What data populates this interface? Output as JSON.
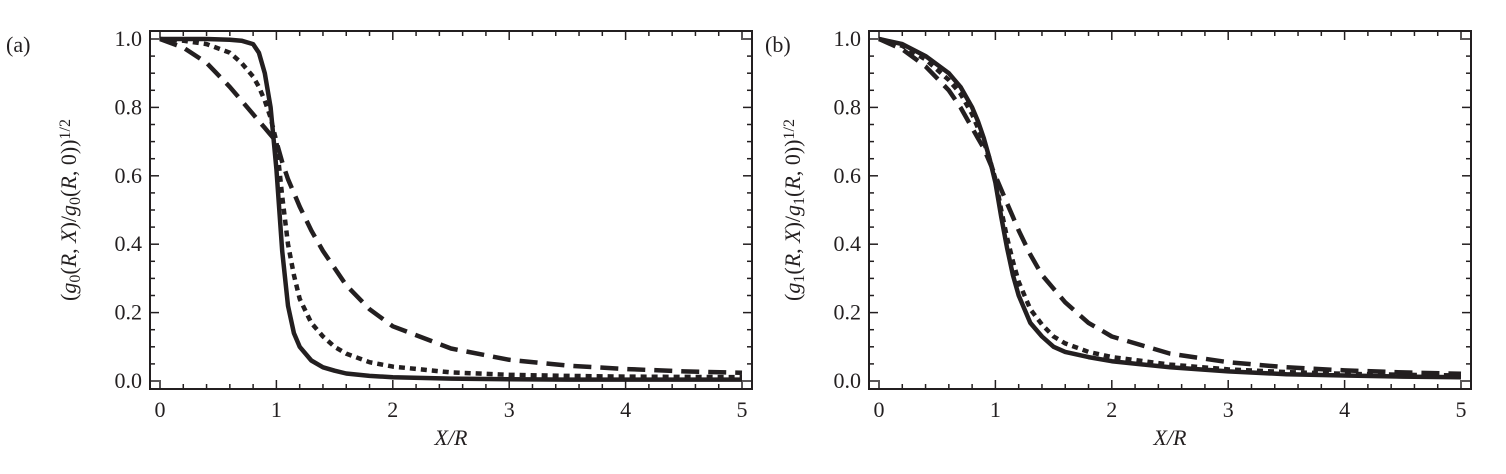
{
  "chart_data": [
    {
      "type": "line",
      "panel_label": "(a)",
      "xlabel": "X/R",
      "ylabel": "(g0(R, X)/g0(R, 0))^1/2",
      "ylabel_g": "g",
      "ylabel_sub": "0",
      "xlim": [
        0,
        5
      ],
      "ylim": [
        0,
        1
      ],
      "x_ticks": [
        "0",
        "1",
        "2",
        "3",
        "4",
        "5"
      ],
      "y_ticks": [
        "0.0",
        "0.2",
        "0.4",
        "0.6",
        "0.8",
        "1.0"
      ],
      "x": [
        0,
        0.2,
        0.4,
        0.6,
        0.7,
        0.8,
        0.85,
        0.9,
        0.95,
        1.0,
        1.05,
        1.1,
        1.15,
        1.2,
        1.3,
        1.4,
        1.5,
        1.6,
        1.8,
        2.0,
        2.5,
        3.0,
        3.5,
        4.0,
        4.5,
        5.0
      ],
      "series": [
        {
          "style": "solid",
          "values": [
            1.0,
            1.0,
            1.0,
            0.998,
            0.995,
            0.985,
            0.96,
            0.9,
            0.8,
            0.62,
            0.38,
            0.22,
            0.14,
            0.1,
            0.06,
            0.04,
            0.03,
            0.022,
            0.015,
            0.011,
            0.007,
            0.005,
            0.004,
            0.004,
            0.004,
            0.004
          ]
        },
        {
          "style": "dotted",
          "values": [
            1.0,
            0.995,
            0.985,
            0.96,
            0.93,
            0.89,
            0.86,
            0.82,
            0.77,
            0.7,
            0.54,
            0.4,
            0.31,
            0.24,
            0.17,
            0.13,
            0.1,
            0.08,
            0.055,
            0.042,
            0.025,
            0.018,
            0.015,
            0.013,
            0.012,
            0.011
          ]
        },
        {
          "style": "dashed",
          "values": [
            1.0,
            0.975,
            0.93,
            0.86,
            0.82,
            0.78,
            0.76,
            0.74,
            0.72,
            0.7,
            0.64,
            0.59,
            0.55,
            0.51,
            0.44,
            0.38,
            0.33,
            0.28,
            0.21,
            0.16,
            0.095,
            0.062,
            0.045,
            0.035,
            0.028,
            0.024
          ]
        }
      ]
    },
    {
      "type": "line",
      "panel_label": "(b)",
      "xlabel": "X/R",
      "ylabel": "(g1(R, X)/g1(R, 0))^1/2",
      "ylabel_g": "g",
      "ylabel_sub": "1",
      "xlim": [
        0,
        5
      ],
      "ylim": [
        0,
        1
      ],
      "x_ticks": [
        "0",
        "1",
        "2",
        "3",
        "4",
        "5"
      ],
      "y_ticks": [
        "0.0",
        "0.2",
        "0.4",
        "0.6",
        "0.8",
        "1.0"
      ],
      "x": [
        0,
        0.2,
        0.4,
        0.6,
        0.7,
        0.8,
        0.85,
        0.9,
        0.95,
        1.0,
        1.05,
        1.1,
        1.15,
        1.2,
        1.3,
        1.4,
        1.5,
        1.6,
        1.8,
        2.0,
        2.5,
        3.0,
        3.5,
        4.0,
        4.5,
        5.0
      ],
      "series": [
        {
          "style": "solid",
          "values": [
            1.0,
            0.985,
            0.95,
            0.9,
            0.86,
            0.8,
            0.76,
            0.71,
            0.65,
            0.58,
            0.48,
            0.39,
            0.31,
            0.25,
            0.17,
            0.13,
            0.1,
            0.085,
            0.07,
            0.058,
            0.04,
            0.028,
            0.02,
            0.016,
            0.013,
            0.011
          ]
        },
        {
          "style": "dotted",
          "values": [
            1.0,
            0.98,
            0.94,
            0.88,
            0.84,
            0.78,
            0.74,
            0.7,
            0.65,
            0.59,
            0.5,
            0.42,
            0.35,
            0.29,
            0.21,
            0.165,
            0.13,
            0.11,
            0.085,
            0.07,
            0.048,
            0.034,
            0.026,
            0.021,
            0.018,
            0.016
          ]
        },
        {
          "style": "dashed",
          "values": [
            1.0,
            0.97,
            0.92,
            0.85,
            0.8,
            0.74,
            0.71,
            0.68,
            0.64,
            0.6,
            0.56,
            0.52,
            0.48,
            0.44,
            0.37,
            0.31,
            0.27,
            0.23,
            0.17,
            0.13,
            0.08,
            0.055,
            0.04,
            0.031,
            0.025,
            0.021
          ]
        }
      ]
    }
  ]
}
